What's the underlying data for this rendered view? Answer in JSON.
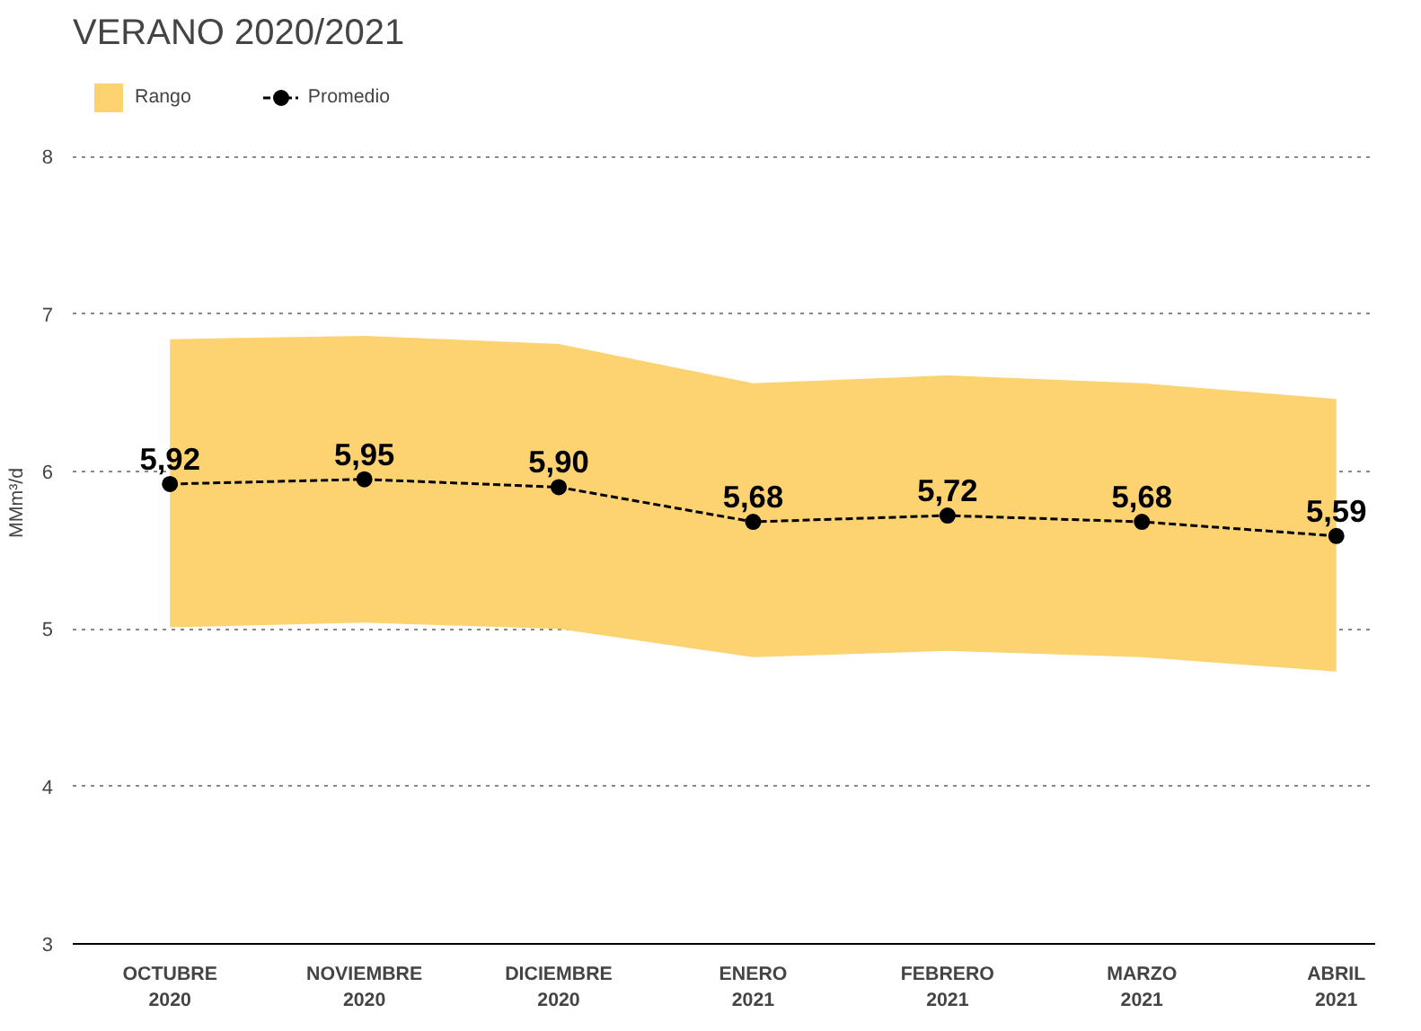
{
  "chart_data": {
    "type": "line",
    "title": "VERANO 2020/2021",
    "ylabel": "MMm³/d",
    "categories": [
      "OCTUBRE\n2020",
      "NOVIEMBRE\n2020",
      "DICIEMBRE\n2020",
      "ENERO\n2021",
      "FEBRERO\n2021",
      "MARZO\n2021",
      "ABRIL\n2021"
    ],
    "series": [
      {
        "name": "Rango",
        "type": "area",
        "color": "#fdd271",
        "values": [
          null,
          null,
          null,
          null,
          null,
          null,
          null
        ],
        "lower": [
          5.01,
          5.04,
          5.0,
          4.82,
          4.86,
          4.82,
          4.73
        ],
        "upper": [
          6.84,
          6.86,
          6.81,
          6.56,
          6.61,
          6.56,
          6.46
        ]
      },
      {
        "name": "Promedio",
        "color": "#000000",
        "marker": "circle",
        "line_style": "dashed",
        "values": [
          5.92,
          5.95,
          5.9,
          5.68,
          5.72,
          5.68,
          5.59
        ],
        "value_labels": [
          "5,92",
          "5,95",
          "5,90",
          "5,68",
          "5,72",
          "5,68",
          "5,59"
        ]
      }
    ],
    "ylim": [
      3,
      8
    ],
    "yticks": [
      3,
      4,
      5,
      6,
      7,
      8
    ],
    "grid": "y",
    "legend": "top left"
  }
}
